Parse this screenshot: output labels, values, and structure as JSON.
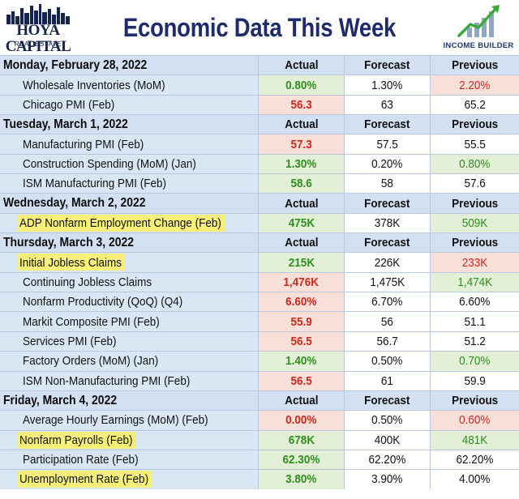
{
  "header": {
    "title": "Economic Data This Week",
    "left_logo_line1": "HOYA CAPITAL",
    "left_logo_line2": "REAL ESTATE",
    "right_logo_text": "INCOME BUILDER"
  },
  "colors": {
    "positive": "#2f8f1e",
    "negative": "#d1261d",
    "highlight": "#f6f07a",
    "section_bg": "#d2e0f1",
    "title": "#1e2c6e"
  },
  "columns": [
    "Actual",
    "Forecast",
    "Previous"
  ],
  "sections": [
    {
      "day": "Monday, February 28, 2022",
      "rows": [
        {
          "name": "Wholesale Inventories (MoM)",
          "actual": "0.80%",
          "forecast": "1.30%",
          "previous": "2.20%",
          "actual_tone": "g",
          "previous_tone": "r",
          "highlight": false
        },
        {
          "name": "Chicago PMI (Feb)",
          "actual": "56.3",
          "forecast": "63",
          "previous": "65.2",
          "actual_tone": "r",
          "previous_tone": "w",
          "highlight": false
        }
      ]
    },
    {
      "day": "Tuesday, March 1, 2022",
      "rows": [
        {
          "name": "Manufacturing PMI (Feb)",
          "actual": "57.3",
          "forecast": "57.5",
          "previous": "55.5",
          "actual_tone": "r",
          "previous_tone": "w",
          "highlight": false
        },
        {
          "name": "Construction Spending (MoM) (Jan)",
          "actual": "1.30%",
          "forecast": "0.20%",
          "previous": "0.80%",
          "actual_tone": "g",
          "previous_tone": "g",
          "highlight": false
        },
        {
          "name": "ISM Manufacturing PMI (Feb)",
          "actual": "58.6",
          "forecast": "58",
          "previous": "57.6",
          "actual_tone": "g",
          "previous_tone": "w",
          "highlight": false
        }
      ]
    },
    {
      "day": "Wednesday, March 2, 2022",
      "rows": [
        {
          "name": "ADP Nonfarm Employment Change (Feb)",
          "actual": "475K",
          "forecast": "378K",
          "previous": "509K",
          "actual_tone": "g",
          "previous_tone": "g",
          "highlight": true
        }
      ]
    },
    {
      "day": "Thursday, March 3, 2022",
      "rows": [
        {
          "name": "Initial Jobless Claims",
          "actual": "215K",
          "forecast": "226K",
          "previous": "233K",
          "actual_tone": "g",
          "previous_tone": "r",
          "highlight": true
        },
        {
          "name": "Continuing Jobless Claims",
          "actual": "1,476K",
          "forecast": "1,475K",
          "previous": "1,474K",
          "actual_tone": "r",
          "previous_tone": "g",
          "highlight": false
        },
        {
          "name": "Nonfarm Productivity (QoQ) (Q4)",
          "actual": "6.60%",
          "forecast": "6.70%",
          "previous": "6.60%",
          "actual_tone": "r",
          "previous_tone": "w",
          "highlight": false
        },
        {
          "name": "Markit Composite PMI (Feb)",
          "actual": "55.9",
          "forecast": "56",
          "previous": "51.1",
          "actual_tone": "r",
          "previous_tone": "w",
          "highlight": false
        },
        {
          "name": "Services PMI (Feb)",
          "actual": "56.5",
          "forecast": "56.7",
          "previous": "51.2",
          "actual_tone": "r",
          "previous_tone": "w",
          "highlight": false
        },
        {
          "name": "Factory Orders (MoM) (Jan)",
          "actual": "1.40%",
          "forecast": "0.50%",
          "previous": "0.70%",
          "actual_tone": "g",
          "previous_tone": "g",
          "highlight": false
        },
        {
          "name": "ISM Non-Manufacturing PMI (Feb)",
          "actual": "56.5",
          "forecast": "61",
          "previous": "59.9",
          "actual_tone": "r",
          "previous_tone": "w",
          "highlight": false
        }
      ]
    },
    {
      "day": "Friday, March 4, 2022",
      "rows": [
        {
          "name": "Average Hourly Earnings (MoM) (Feb)",
          "actual": "0.00%",
          "forecast": "0.50%",
          "previous": "0.60%",
          "actual_tone": "r",
          "previous_tone": "r",
          "highlight": false
        },
        {
          "name": "Nonfarm Payrolls (Feb)",
          "actual": "678K",
          "forecast": "400K",
          "previous": "481K",
          "actual_tone": "g",
          "previous_tone": "g",
          "highlight": true
        },
        {
          "name": "Participation Rate (Feb)",
          "actual": "62.30%",
          "forecast": "62.20%",
          "previous": "62.20%",
          "actual_tone": "g",
          "previous_tone": "w",
          "highlight": false
        },
        {
          "name": "Unemployment Rate (Feb)",
          "actual": "3.80%",
          "forecast": "3.90%",
          "previous": "4.00%",
          "actual_tone": "g",
          "previous_tone": "w",
          "highlight": true
        }
      ]
    }
  ]
}
